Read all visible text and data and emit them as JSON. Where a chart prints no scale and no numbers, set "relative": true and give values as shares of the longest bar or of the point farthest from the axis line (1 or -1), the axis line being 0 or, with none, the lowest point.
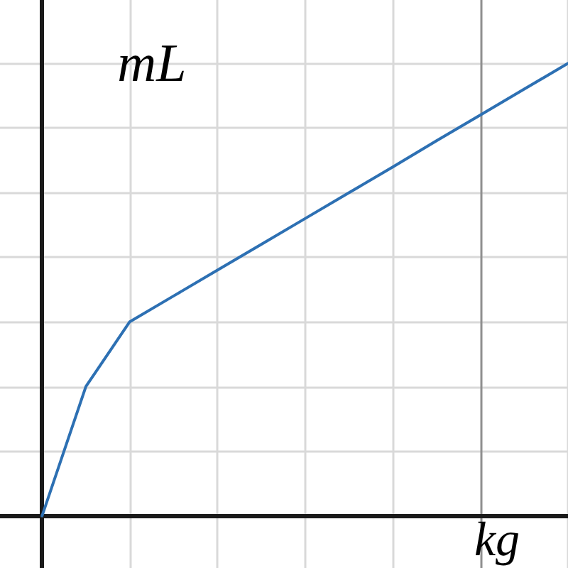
{
  "chart_data": {
    "type": "line",
    "relative": true,
    "xlabel": "kg",
    "ylabel": "mL",
    "categories": [
      null,
      null,
      null,
      null,
      null,
      null,
      null,
      null,
      null,
      null,
      null,
      null,
      null
    ],
    "series": [
      {
        "color": "#2d70b3",
        "values": [
          0,
          0.286,
          0.429,
          0.486,
          0.543,
          0.6,
          0.657,
          0.714,
          0.771,
          0.829,
          0.886,
          0.943,
          1
        ]
      }
    ],
    "grid": true,
    "marker": "none",
    "line_style": "solid"
  }
}
